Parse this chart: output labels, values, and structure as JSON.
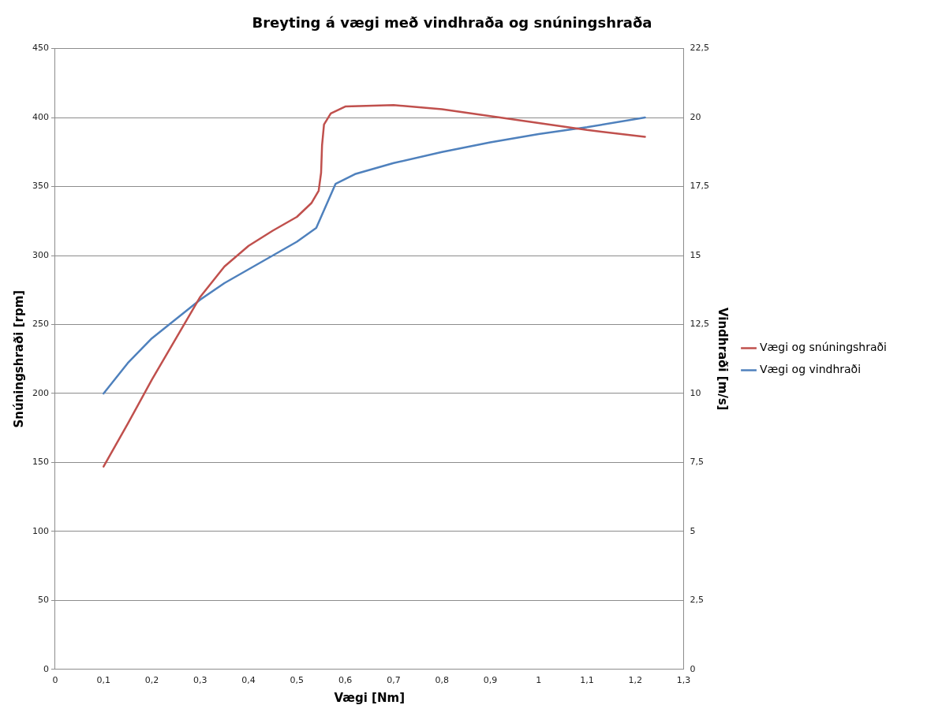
{
  "chart_data": {
    "type": "line",
    "title": "Breyting á vægi með vindhraða og snúningshraða",
    "xlabel": "Vægi [Nm]",
    "ylabel": "Snúningshraði [rpm]",
    "y2label": "Vindhraði [m/s]",
    "xlim": [
      0,
      1.3
    ],
    "xticks": [
      0,
      {
        "value": 0.1,
        "label": "0,1"
      },
      {
        "value": 0.2,
        "label": "0,2"
      },
      {
        "value": 0.3,
        "label": "0,3"
      },
      {
        "value": 0.4,
        "label": "0,4"
      },
      {
        "value": 0.5,
        "label": "0,5"
      },
      {
        "value": 0.6,
        "label": "0,6"
      },
      {
        "value": 0.7,
        "label": "0,7"
      },
      {
        "value": 0.8,
        "label": "0,8"
      },
      {
        "value": 0.9,
        "label": "0,9"
      },
      1,
      {
        "value": 1.1,
        "label": "1,1"
      },
      {
        "value": 1.2,
        "label": "1,2"
      },
      {
        "value": 1.3,
        "label": "1,3"
      }
    ],
    "ylim": [
      0,
      450
    ],
    "yticks": [
      0,
      50,
      100,
      150,
      200,
      250,
      300,
      350,
      400,
      450
    ],
    "y2lim": [
      0,
      22.5
    ],
    "y2ticks": [
      0,
      {
        "value": 2.5,
        "label": "2,5"
      },
      5,
      {
        "value": 7.5,
        "label": "7,5"
      },
      10,
      {
        "value": 12.5,
        "label": "12,5"
      },
      15,
      {
        "value": 17.5,
        "label": "17,5"
      },
      20,
      {
        "value": 22.5,
        "label": "22,5"
      }
    ],
    "grid": "y",
    "legend": "right",
    "marker": "none",
    "line_style": "solid",
    "series": [
      {
        "name": "Vægi og snúningshraði",
        "color": "#c0504d",
        "x": [
          0.1,
          0.15,
          0.2,
          0.25,
          0.3,
          0.35,
          0.4,
          0.45,
          0.5,
          0.53,
          0.545,
          0.55,
          0.552,
          0.556,
          0.57,
          0.6,
          0.7,
          0.8,
          0.9,
          1.0,
          1.1,
          1.22
        ],
        "values": [
          147,
          178,
          210,
          240,
          270,
          292,
          307,
          318,
          328,
          338,
          347,
          360,
          380,
          395,
          403,
          408,
          409,
          406,
          401,
          396,
          391,
          386
        ]
      },
      {
        "name": "Vægi og vindhraði",
        "color": "#4f81bd",
        "axis": "y2",
        "x": [
          0.1,
          0.15,
          0.2,
          0.25,
          0.3,
          0.35,
          0.4,
          0.45,
          0.5,
          0.54,
          0.56,
          0.58,
          0.62,
          0.7,
          0.8,
          0.9,
          1.0,
          1.1,
          1.22
        ],
        "values": [
          10,
          11.1,
          12.0,
          12.7,
          13.4,
          14.0,
          14.5,
          15.0,
          15.5,
          16.0,
          16.8,
          17.6,
          17.95,
          18.35,
          18.75,
          19.1,
          19.4,
          19.65,
          20
        ]
      }
    ]
  }
}
